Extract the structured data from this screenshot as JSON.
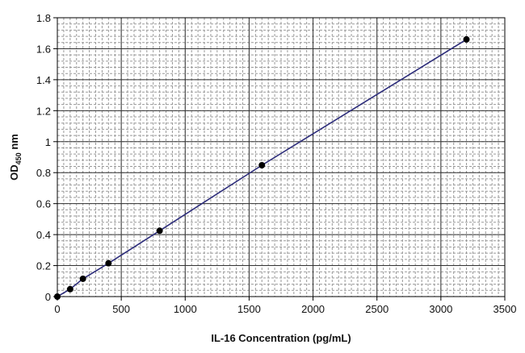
{
  "chart_data": {
    "type": "line",
    "xlabel": "IL-16 Concentration (pg/mL)",
    "ylabel_main": "OD",
    "ylabel_sub": "450",
    "ylabel_unit": " nm",
    "xlim": [
      0,
      3500
    ],
    "ylim": [
      0,
      1.8
    ],
    "xticks": [
      0,
      500,
      1000,
      1500,
      2000,
      2500,
      3000,
      3500
    ],
    "yticks": [
      0,
      0.2,
      0.4,
      0.6,
      0.8,
      1,
      1.2,
      1.4,
      1.6,
      1.8
    ],
    "xtick_labels": [
      "0",
      "500",
      "1000",
      "1500",
      "2000",
      "2500",
      "3000",
      "3500"
    ],
    "ytick_labels": [
      "0",
      "0.2",
      "0.4",
      "0.6",
      "0.8",
      "1",
      "1.2",
      "1.4",
      "1.6",
      "1.8"
    ],
    "grid": "major solid, minor dashed",
    "legend": "none",
    "series": [
      {
        "x": [
          0,
          100,
          200,
          400,
          800,
          1600,
          3200
        ],
        "y": [
          0.0,
          0.048,
          0.115,
          0.215,
          0.425,
          0.848,
          1.66
        ]
      }
    ],
    "line_color": "#2c2c7a",
    "marker_color": "#000000"
  }
}
